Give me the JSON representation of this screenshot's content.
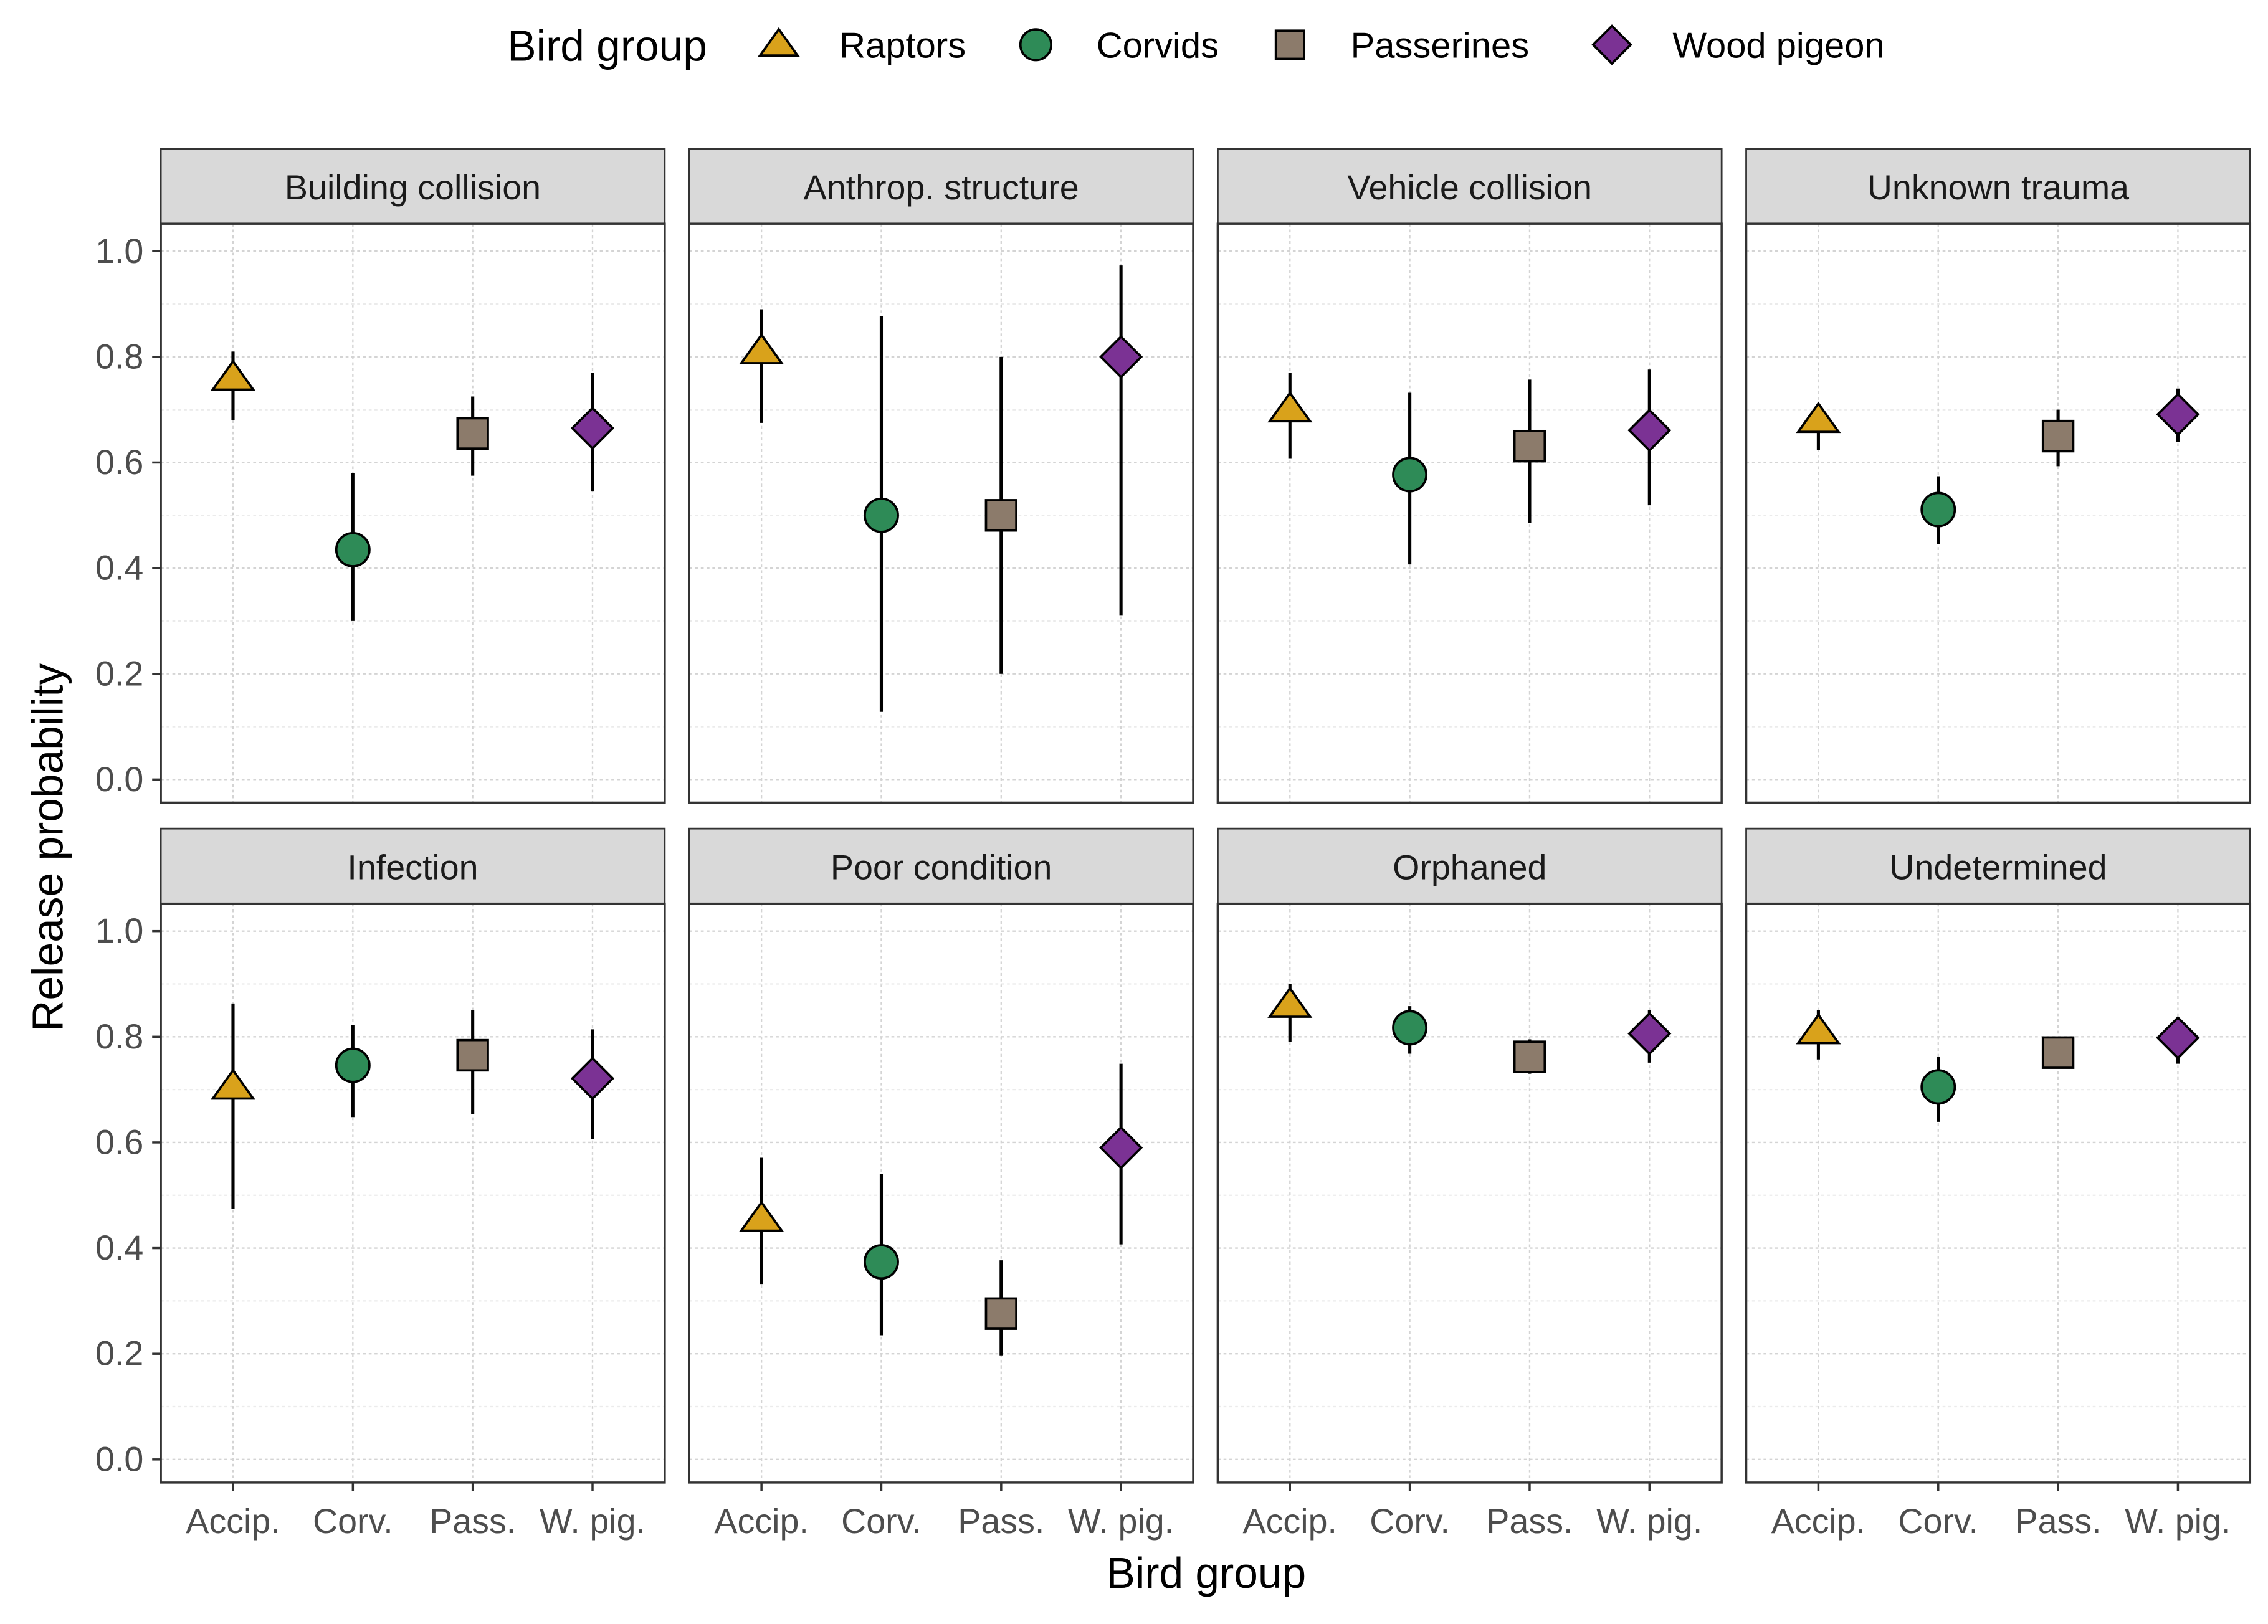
{
  "chart_data": {
    "type": "scatter",
    "subtype": "faceted point-range",
    "xlabel": "Bird group",
    "ylabel": "Release probability",
    "ylim": [
      0,
      1
    ],
    "yticks": [
      "0.0",
      "0.2",
      "0.4",
      "0.6",
      "0.8",
      "1.0"
    ],
    "grid": true,
    "categories": [
      "Accip.",
      "Corv.",
      "Pass.",
      "W. pig."
    ],
    "legend": {
      "title": "Bird group",
      "placement": "top",
      "entries": [
        {
          "name": "Raptors",
          "shape": "triangle",
          "color": "#D9A21B"
        },
        {
          "name": "Corvids",
          "shape": "circle",
          "color": "#2E8B57"
        },
        {
          "name": "Passerines",
          "shape": "square",
          "color": "#8C7B6B"
        },
        {
          "name": "Wood pigeon",
          "shape": "diamond",
          "color": "#7B3294"
        }
      ]
    },
    "panels": [
      {
        "title": "Building collision",
        "points": [
          {
            "est": 0.76,
            "lo": 0.68,
            "hi": 0.81
          },
          {
            "est": 0.435,
            "lo": 0.3,
            "hi": 0.58
          },
          {
            "est": 0.655,
            "lo": 0.575,
            "hi": 0.725
          },
          {
            "est": 0.665,
            "lo": 0.545,
            "hi": 0.77
          }
        ]
      },
      {
        "title": "Anthrop. structure",
        "points": [
          {
            "est": 0.81,
            "lo": 0.675,
            "hi": 0.89
          },
          {
            "est": 0.5,
            "lo": 0.128,
            "hi": 0.877
          },
          {
            "est": 0.5,
            "lo": 0.2,
            "hi": 0.8
          },
          {
            "est": 0.8,
            "lo": 0.31,
            "hi": 0.973
          }
        ]
      },
      {
        "title": "Vehicle collision",
        "points": [
          {
            "est": 0.7,
            "lo": 0.607,
            "hi": 0.77
          },
          {
            "est": 0.577,
            "lo": 0.407,
            "hi": 0.732
          },
          {
            "est": 0.631,
            "lo": 0.486,
            "hi": 0.757
          },
          {
            "est": 0.661,
            "lo": 0.519,
            "hi": 0.776
          }
        ]
      },
      {
        "title": "Unknown trauma",
        "points": [
          {
            "est": 0.68,
            "lo": 0.623,
            "hi": 0.71
          },
          {
            "est": 0.511,
            "lo": 0.445,
            "hi": 0.574
          },
          {
            "est": 0.65,
            "lo": 0.593,
            "hi": 0.7
          },
          {
            "est": 0.691,
            "lo": 0.639,
            "hi": 0.74
          }
        ]
      },
      {
        "title": "Infection",
        "points": [
          {
            "est": 0.705,
            "lo": 0.475,
            "hi": 0.863
          },
          {
            "est": 0.746,
            "lo": 0.648,
            "hi": 0.822
          },
          {
            "est": 0.765,
            "lo": 0.653,
            "hi": 0.85
          },
          {
            "est": 0.721,
            "lo": 0.607,
            "hi": 0.814
          }
        ]
      },
      {
        "title": "Poor condition",
        "points": [
          {
            "est": 0.455,
            "lo": 0.331,
            "hi": 0.571
          },
          {
            "est": 0.374,
            "lo": 0.235,
            "hi": 0.541
          },
          {
            "est": 0.276,
            "lo": 0.197,
            "hi": 0.377
          },
          {
            "est": 0.59,
            "lo": 0.407,
            "hi": 0.749
          }
        ]
      },
      {
        "title": "Orphaned",
        "points": [
          {
            "est": 0.86,
            "lo": 0.79,
            "hi": 0.9
          },
          {
            "est": 0.817,
            "lo": 0.768,
            "hi": 0.858
          },
          {
            "est": 0.762,
            "lo": 0.73,
            "hi": 0.795
          },
          {
            "est": 0.806,
            "lo": 0.751,
            "hi": 0.85
          }
        ]
      },
      {
        "title": "Undetermined",
        "points": [
          {
            "est": 0.81,
            "lo": 0.757,
            "hi": 0.85
          },
          {
            "est": 0.705,
            "lo": 0.639,
            "hi": 0.762
          },
          {
            "est": 0.77,
            "lo": 0.74,
            "hi": 0.798
          },
          {
            "est": 0.798,
            "lo": 0.749,
            "hi": 0.836
          }
        ]
      }
    ]
  }
}
